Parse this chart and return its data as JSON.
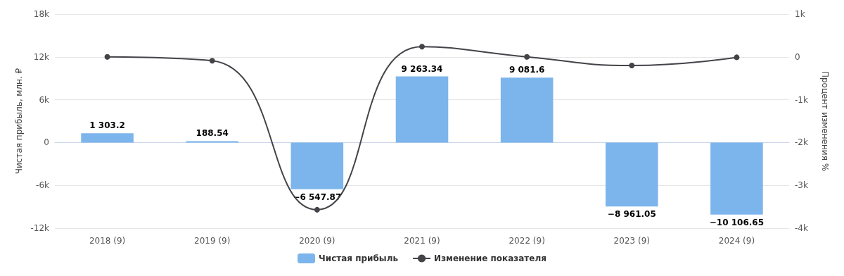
{
  "chart_data": {
    "type": "bar",
    "categories": [
      "2018 (9)",
      "2019 (9)",
      "2020 (9)",
      "2021 (9)",
      "2022 (9)",
      "2023 (9)",
      "2024 (9)"
    ],
    "series": [
      {
        "name": "Чистая прибыль",
        "color": "#7cb5ec",
        "values": [
          1303.2,
          188.54,
          -6547.87,
          9263.34,
          9081.6,
          -8961.05,
          -10106.65
        ],
        "value_labels": [
          "1 303.2",
          "188.54",
          "−6 547.87",
          "9 263.34",
          "9 081.6",
          "−8 961.05",
          "−10 106.65"
        ]
      },
      {
        "name": "Изменение показателя",
        "type": "line",
        "axis": "y2",
        "color": "#434348",
        "marker": "circle",
        "values": [
          0,
          -90,
          -3570,
          240,
          0,
          -200,
          -10
        ]
      }
    ],
    "ylabel": "Чистая прибыль, млн. ₽",
    "y2label": "Процент изменения %",
    "ylim": [
      -12000,
      18000
    ],
    "yticks": [
      {
        "value": -12000,
        "label": "-12k"
      },
      {
        "value": -6000,
        "label": "-6k"
      },
      0,
      {
        "value": 6000,
        "label": "6k"
      },
      {
        "value": 12000,
        "label": "12k"
      },
      {
        "value": 18000,
        "label": "18k"
      }
    ],
    "y2lim": [
      -4000,
      1000
    ],
    "y2ticks": [
      {
        "value": -4000,
        "label": "-4k"
      },
      {
        "value": -3000,
        "label": "-3k"
      },
      {
        "value": -2000,
        "label": "-2k"
      },
      {
        "value": -1000,
        "label": "-1k"
      },
      0,
      {
        "value": 1000,
        "label": "1k"
      }
    ],
    "grid": "y",
    "legend": "bottom"
  }
}
